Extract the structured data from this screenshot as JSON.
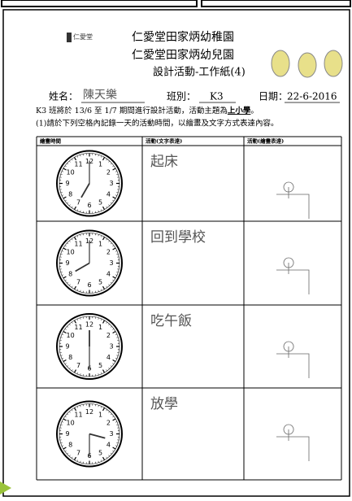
{
  "header": {
    "logo_text": "仁愛堂",
    "school_names": [
      "仁愛堂田家炳幼稚園",
      "仁愛堂田家炳幼兒園"
    ],
    "title": "設計活動-工作紙(4)"
  },
  "info": {
    "name_label": "姓名：",
    "name": "陳天樂",
    "class_label": "班別：",
    "class": "K3",
    "date_label": "日期：",
    "date": "22-6-2016"
  },
  "intro": {
    "text": "K3 班將於 13/6 至 1/7 期間進行設計活動，活動主題為",
    "topic": "上小學",
    "end": "。"
  },
  "instruction": "(1)請於下列空格內記錄一天的活動時間，以繪畫及文字方式表達內容。",
  "table": {
    "headers": [
      "繪畫時間",
      "活動(文字表達)",
      "活動(繪畫表達)"
    ],
    "clock_numbers": [
      "12",
      "1",
      "2",
      "3",
      "4",
      "5",
      "6",
      "7",
      "8",
      "9",
      "10",
      "11"
    ],
    "rows": [
      {
        "activity": "起床"
      },
      {
        "activity": "回到學校"
      },
      {
        "activity": "吃午飯"
      },
      {
        "activity": "放學"
      }
    ]
  }
}
